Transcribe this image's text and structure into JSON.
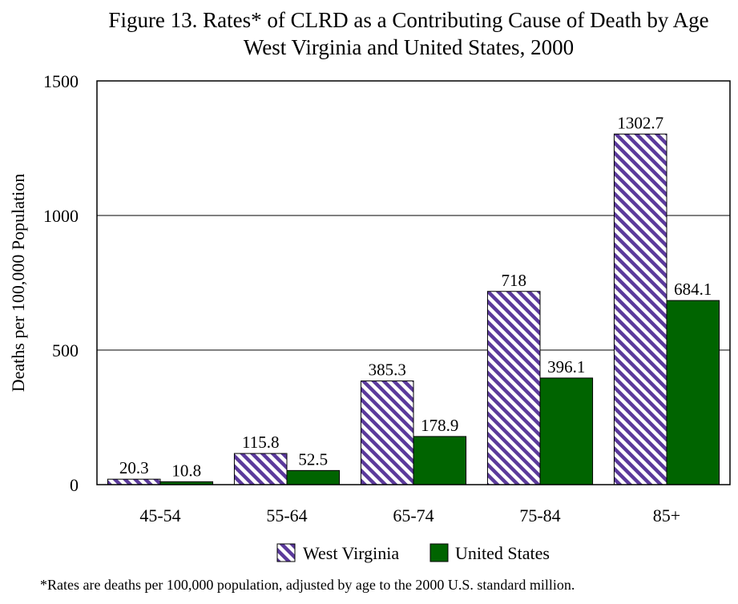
{
  "chart_data": {
    "type": "bar",
    "title": "Figure 13.  Rates* of CLRD as a Contributing Cause of Death by Age",
    "subtitle": "West Virginia and United States, 2000",
    "xlabel": "",
    "ylabel": "Deaths per 100,000 Population",
    "ylim": [
      0,
      1500
    ],
    "yticks": [
      "0",
      "500",
      "1000",
      "1500"
    ],
    "categories": [
      "45-54",
      "55-64",
      "65-74",
      "75-84",
      "85+"
    ],
    "series": [
      {
        "name": "West Virginia",
        "values": [
          20.3,
          115.8,
          385.3,
          718,
          1302.7
        ],
        "labels": [
          "20.3",
          "115.8",
          "385.3",
          "718",
          "1302.7"
        ],
        "color": "#5b3a9b",
        "pattern": "diagonal-stripes"
      },
      {
        "name": "United States",
        "values": [
          10.8,
          52.5,
          178.9,
          396.1,
          684.1
        ],
        "labels": [
          "10.8",
          "52.5",
          "178.9",
          "396.1",
          "684.1"
        ],
        "color": "#006400",
        "pattern": "solid"
      }
    ],
    "grid": true,
    "legend_position": "bottom-center",
    "footnote": "*Rates are deaths per 100,000 population, adjusted by age to the 2000 U.S. standard million."
  }
}
